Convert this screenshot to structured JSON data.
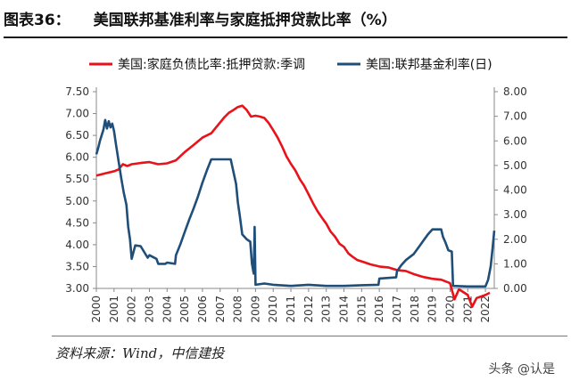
{
  "header": {
    "label": "图表36：",
    "text": "美国联邦基准利率与家庭抵押贷款比率（%）"
  },
  "footer": {
    "source": "资料来源：Wind，中信建投",
    "watermark": "头条 @认是"
  },
  "chart_data": {
    "type": "line",
    "title": "美国联邦基准利率与家庭抵押贷款比率（%）",
    "x_range": [
      2000,
      2022.5
    ],
    "x_ticks": [
      "2000",
      "2001",
      "2002",
      "2003",
      "2004",
      "2005",
      "2006",
      "2007",
      "2008",
      "2009",
      "2010",
      "2011",
      "2012",
      "2013",
      "2014",
      "2015",
      "2016",
      "2017",
      "2018",
      "2019",
      "2020",
      "2021",
      "2022"
    ],
    "y_left": {
      "range": [
        3.0,
        7.5
      ],
      "ticks": [
        "3.00",
        "3.50",
        "4.00",
        "4.50",
        "5.00",
        "5.50",
        "6.00",
        "6.50",
        "7.00",
        "7.50"
      ]
    },
    "y_right": {
      "range": [
        0.0,
        8.0
      ],
      "ticks": [
        "0.00",
        "1.00",
        "2.00",
        "3.00",
        "4.00",
        "5.00",
        "6.00",
        "7.00",
        "8.00"
      ]
    },
    "grid": false,
    "legend_position": "top",
    "series": [
      {
        "name": "美国:家庭负债比率:抵押贷款:季调",
        "axis": "left",
        "color": "#e8131a",
        "points": [
          [
            2000.0,
            5.58
          ],
          [
            2000.5,
            5.63
          ],
          [
            2001.0,
            5.68
          ],
          [
            2001.25,
            5.72
          ],
          [
            2001.5,
            5.84
          ],
          [
            2001.75,
            5.8
          ],
          [
            2002.0,
            5.84
          ],
          [
            2002.5,
            5.87
          ],
          [
            2003.0,
            5.89
          ],
          [
            2003.5,
            5.84
          ],
          [
            2004.0,
            5.86
          ],
          [
            2004.5,
            5.93
          ],
          [
            2005.0,
            6.12
          ],
          [
            2005.5,
            6.28
          ],
          [
            2006.0,
            6.45
          ],
          [
            2006.5,
            6.55
          ],
          [
            2007.0,
            6.8
          ],
          [
            2007.25,
            6.92
          ],
          [
            2007.5,
            7.02
          ],
          [
            2007.75,
            7.08
          ],
          [
            2008.0,
            7.15
          ],
          [
            2008.25,
            7.18
          ],
          [
            2008.5,
            7.08
          ],
          [
            2008.75,
            6.93
          ],
          [
            2009.0,
            6.95
          ],
          [
            2009.25,
            6.93
          ],
          [
            2009.5,
            6.9
          ],
          [
            2009.75,
            6.78
          ],
          [
            2010.0,
            6.62
          ],
          [
            2010.25,
            6.45
          ],
          [
            2010.5,
            6.25
          ],
          [
            2010.75,
            6.02
          ],
          [
            2011.0,
            5.85
          ],
          [
            2011.25,
            5.7
          ],
          [
            2011.5,
            5.5
          ],
          [
            2011.75,
            5.35
          ],
          [
            2012.0,
            5.15
          ],
          [
            2012.25,
            4.95
          ],
          [
            2012.5,
            4.77
          ],
          [
            2012.75,
            4.62
          ],
          [
            2013.0,
            4.48
          ],
          [
            2013.25,
            4.3
          ],
          [
            2013.5,
            4.18
          ],
          [
            2013.75,
            4.02
          ],
          [
            2014.0,
            3.95
          ],
          [
            2014.25,
            3.8
          ],
          [
            2014.5,
            3.72
          ],
          [
            2014.75,
            3.65
          ],
          [
            2015.0,
            3.62
          ],
          [
            2015.5,
            3.55
          ],
          [
            2016.0,
            3.5
          ],
          [
            2016.5,
            3.48
          ],
          [
            2017.0,
            3.42
          ],
          [
            2017.5,
            3.4
          ],
          [
            2018.0,
            3.32
          ],
          [
            2018.5,
            3.26
          ],
          [
            2019.0,
            3.22
          ],
          [
            2019.5,
            3.2
          ],
          [
            2020.0,
            3.12
          ],
          [
            2020.25,
            2.75
          ],
          [
            2020.5,
            2.98
          ],
          [
            2021.0,
            2.85
          ],
          [
            2021.25,
            2.58
          ],
          [
            2021.5,
            2.78
          ],
          [
            2022.0,
            2.85
          ],
          [
            2022.25,
            2.9
          ]
        ]
      },
      {
        "name": "美国:联邦基金利率(日)",
        "axis": "right",
        "color": "#1f4e79",
        "points": [
          [
            2000.0,
            5.45
          ],
          [
            2000.1,
            5.7
          ],
          [
            2000.2,
            6.0
          ],
          [
            2000.4,
            6.45
          ],
          [
            2000.5,
            6.85
          ],
          [
            2000.6,
            6.5
          ],
          [
            2000.7,
            6.8
          ],
          [
            2000.8,
            6.55
          ],
          [
            2000.9,
            6.7
          ],
          [
            2001.0,
            6.4
          ],
          [
            2001.1,
            5.9
          ],
          [
            2001.25,
            5.2
          ],
          [
            2001.4,
            4.5
          ],
          [
            2001.55,
            3.9
          ],
          [
            2001.7,
            3.4
          ],
          [
            2001.8,
            2.5
          ],
          [
            2001.9,
            2.0
          ],
          [
            2002.0,
            1.2
          ],
          [
            2002.2,
            1.75
          ],
          [
            2002.5,
            1.72
          ],
          [
            2002.9,
            1.25
          ],
          [
            2003.0,
            1.35
          ],
          [
            2003.4,
            1.2
          ],
          [
            2003.5,
            1.0
          ],
          [
            2003.9,
            1.0
          ],
          [
            2004.0,
            1.05
          ],
          [
            2004.45,
            1.0
          ],
          [
            2004.5,
            1.35
          ],
          [
            2004.75,
            1.8
          ],
          [
            2005.0,
            2.3
          ],
          [
            2005.25,
            2.8
          ],
          [
            2005.5,
            3.25
          ],
          [
            2005.75,
            3.75
          ],
          [
            2006.0,
            4.3
          ],
          [
            2006.25,
            4.8
          ],
          [
            2006.5,
            5.25
          ],
          [
            2007.0,
            5.25
          ],
          [
            2007.6,
            5.25
          ],
          [
            2007.75,
            4.75
          ],
          [
            2007.9,
            4.25
          ],
          [
            2008.0,
            3.5
          ],
          [
            2008.1,
            3.0
          ],
          [
            2008.25,
            2.2
          ],
          [
            2008.5,
            2.0
          ],
          [
            2008.7,
            1.9
          ],
          [
            2008.8,
            1.0
          ],
          [
            2008.9,
            0.6
          ],
          [
            2008.95,
            2.5
          ],
          [
            2009.0,
            0.15
          ],
          [
            2009.5,
            0.2
          ],
          [
            2010.0,
            0.15
          ],
          [
            2011.0,
            0.1
          ],
          [
            2012.0,
            0.15
          ],
          [
            2013.0,
            0.1
          ],
          [
            2014.0,
            0.1
          ],
          [
            2015.0,
            0.13
          ],
          [
            2015.95,
            0.15
          ],
          [
            2016.0,
            0.4
          ],
          [
            2016.95,
            0.45
          ],
          [
            2017.0,
            0.7
          ],
          [
            2017.25,
            0.95
          ],
          [
            2017.5,
            1.15
          ],
          [
            2017.95,
            1.4
          ],
          [
            2018.25,
            1.7
          ],
          [
            2018.5,
            1.95
          ],
          [
            2018.75,
            2.2
          ],
          [
            2019.0,
            2.4
          ],
          [
            2019.5,
            2.4
          ],
          [
            2019.6,
            2.1
          ],
          [
            2019.75,
            1.85
          ],
          [
            2019.9,
            1.55
          ],
          [
            2020.1,
            1.5
          ],
          [
            2020.17,
            0.1
          ],
          [
            2021.0,
            0.08
          ],
          [
            2022.0,
            0.08
          ],
          [
            2022.15,
            0.35
          ],
          [
            2022.3,
            0.9
          ],
          [
            2022.4,
            1.6
          ],
          [
            2022.5,
            2.35
          ]
        ]
      }
    ]
  }
}
